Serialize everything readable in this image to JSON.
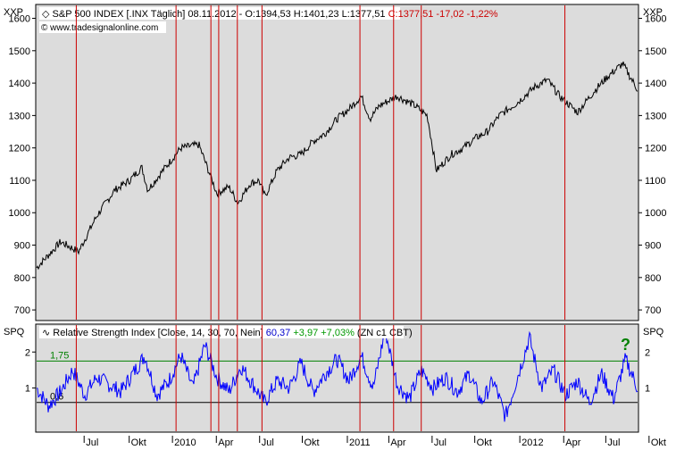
{
  "upper_panel": {
    "scale_label_left": "XXP",
    "scale_label_right": "XXP",
    "header_parts": [
      {
        "text": "S&P 500 INDEX [.INX  Täglich] 08.11.2012 - O:1394,53 H:1401,23 L:1377,51 ",
        "color": "#000000"
      },
      {
        "text": "C:1377,51 -17,02 -1,22%",
        "color": "#cc0000"
      }
    ],
    "copyright": "© www.tradesignalonline.com"
  },
  "lower_panel": {
    "scale_label_left": "SPQ",
    "scale_label_right": "SPQ",
    "header_parts": [
      {
        "text": "Relative Strength Index [Close, 14, 30, 70, Nein] ",
        "color": "#000000"
      },
      {
        "text": "60,37 ",
        "color": "#0000cc"
      },
      {
        "text": "+3,97 +7,03% ",
        "color": "#009900"
      },
      {
        "text": "(ZN c1 CBT)",
        "color": "#000000"
      }
    ],
    "upper_level_label": "1,75",
    "lower_level_label": "0,6",
    "question_mark": "?"
  },
  "colors": {
    "panel_bg": "#dcdcdc",
    "price_line": "#000000",
    "indicator_line": "#0000ff",
    "upper_level": "#008000",
    "lower_level": "#000000",
    "vertical_markers": "#cc0000",
    "question_mark": "#008000"
  },
  "chart_data": [
    {
      "type": "line",
      "yticks": [
        700,
        800,
        900,
        1000,
        1100,
        1200,
        1300,
        1400,
        1500,
        1600
      ],
      "ylim": [
        670,
        1640
      ],
      "series": [
        {
          "x": [
            0,
            0.04,
            0.07,
            0.1,
            0.13,
            0.155,
            0.175,
            0.185,
            0.21,
            0.24,
            0.27,
            0.3,
            0.32,
            0.335,
            0.355,
            0.37,
            0.38,
            0.4,
            0.42,
            0.44,
            0.46,
            0.48,
            0.5,
            0.52,
            0.54,
            0.555,
            0.57,
            0.6,
            0.63,
            0.65,
            0.66,
            0.665,
            0.69,
            0.71,
            0.73,
            0.75,
            0.77,
            0.8,
            0.83,
            0.85,
            0.87,
            0.9,
            0.93,
            0.95,
            0.975,
            1
          ],
          "values": [
            830,
            910,
            880,
            990,
            1070,
            1100,
            1140,
            1070,
            1130,
            1200,
            1210,
            1060,
            1080,
            1030,
            1090,
            1100,
            1050,
            1130,
            1170,
            1180,
            1220,
            1245,
            1290,
            1320,
            1360,
            1290,
            1330,
            1360,
            1330,
            1300,
            1190,
            1130,
            1180,
            1200,
            1230,
            1250,
            1300,
            1340,
            1390,
            1410,
            1360,
            1310,
            1380,
            1420,
            1460,
            1380
          ]
        }
      ]
    },
    {
      "type": "line",
      "title": "Relative Strength Index [Close, 14, 30, 70, Nein]",
      "yticks": [
        1,
        2
      ],
      "ylim": [
        -0.2,
        2.75
      ],
      "hlines": [
        1.75,
        0.6
      ],
      "series": [
        {
          "x": [
            0,
            0.02,
            0.04,
            0.06,
            0.08,
            0.1,
            0.12,
            0.14,
            0.16,
            0.18,
            0.2,
            0.22,
            0.24,
            0.26,
            0.28,
            0.3,
            0.32,
            0.34,
            0.36,
            0.38,
            0.4,
            0.42,
            0.44,
            0.46,
            0.48,
            0.5,
            0.52,
            0.54,
            0.56,
            0.58,
            0.6,
            0.62,
            0.64,
            0.66,
            0.68,
            0.7,
            0.72,
            0.74,
            0.76,
            0.78,
            0.8,
            0.82,
            0.84,
            0.86,
            0.88,
            0.9,
            0.92,
            0.94,
            0.96,
            0.98,
            1
          ],
          "values": [
            1.0,
            0.5,
            0.9,
            1.5,
            0.8,
            1.3,
            1.1,
            0.9,
            1.4,
            1.9,
            0.8,
            1.2,
            1.9,
            1.0,
            2.2,
            1.3,
            0.9,
            1.6,
            1.1,
            0.6,
            1.2,
            1.0,
            1.7,
            0.9,
            1.4,
            1.8,
            1.2,
            1.9,
            1.0,
            2.6,
            1.1,
            0.7,
            1.5,
            1.0,
            1.3,
            0.9,
            1.4,
            0.6,
            1.2,
            0.2,
            1.3,
            2.4,
            1.0,
            1.5,
            0.8,
            1.2,
            0.6,
            1.4,
            0.7,
            1.8,
            1.0
          ]
        }
      ]
    }
  ],
  "x_axis": {
    "labels": [
      {
        "label": "Jul",
        "pos": 0.085
      },
      {
        "label": "Okt",
        "pos": 0.16
      },
      {
        "label": "2010",
        "pos": 0.232
      },
      {
        "label": "Apr",
        "pos": 0.305
      },
      {
        "label": "Jul",
        "pos": 0.377
      },
      {
        "label": "Okt",
        "pos": 0.448
      },
      {
        "label": "2011",
        "pos": 0.523
      },
      {
        "label": "Apr",
        "pos": 0.592
      },
      {
        "label": "Jul",
        "pos": 0.664
      },
      {
        "label": "Okt",
        "pos": 0.735
      },
      {
        "label": "2012",
        "pos": 0.81
      },
      {
        "label": "Apr",
        "pos": 0.883
      },
      {
        "label": "Jul",
        "pos": 0.953
      },
      {
        "label": "Okt",
        "pos": 1.025
      }
    ]
  },
  "vertical_markers": [
    0.066,
    0.232,
    0.29,
    0.303,
    0.334,
    0.375,
    0.538,
    0.594,
    0.64,
    0.879
  ]
}
